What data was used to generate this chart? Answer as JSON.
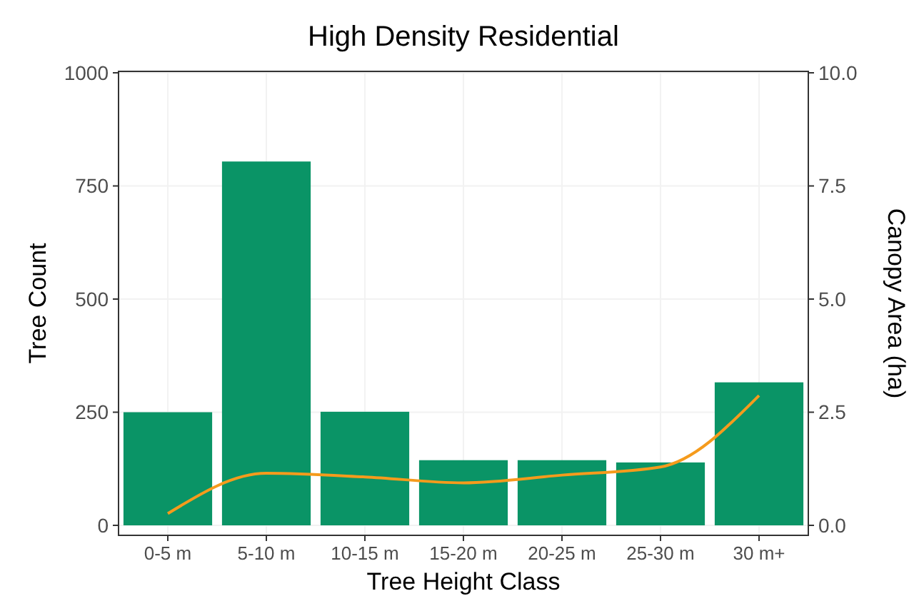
{
  "chart_data": {
    "type": "bar",
    "title": "High Density Residential",
    "xlabel": "Tree Height Class",
    "ylabel": "Tree Count",
    "y2label": "Canopy Area (ha)",
    "categories": [
      "0-5 m",
      "5-10 m",
      "10-15 m",
      "15-20 m",
      "20-25 m",
      "25-30 m",
      "30 m+"
    ],
    "series": [
      {
        "color": "#0a9466",
        "values": [
          250,
          804,
          251,
          144,
          144,
          139,
          316
        ]
      },
      {
        "type": "line",
        "axis": "y2",
        "color": "#f59b1c",
        "values": [
          0.26,
          1.15,
          1.07,
          0.94,
          1.11,
          1.29,
          2.87
        ]
      }
    ],
    "ylim": [
      0,
      1000
    ],
    "yticks": [
      0,
      250,
      500,
      750,
      1000
    ],
    "y2lim": [
      0,
      10
    ],
    "y2ticks": [
      {
        "value": 0,
        "label": "0.0"
      },
      {
        "value": 2.5,
        "label": "2.5"
      },
      {
        "value": 5,
        "label": "5.0"
      },
      {
        "value": 7.5,
        "label": "7.5"
      },
      {
        "value": 10,
        "label": "10.0"
      }
    ],
    "grid": true,
    "line_style": "solid",
    "marker": "none"
  }
}
